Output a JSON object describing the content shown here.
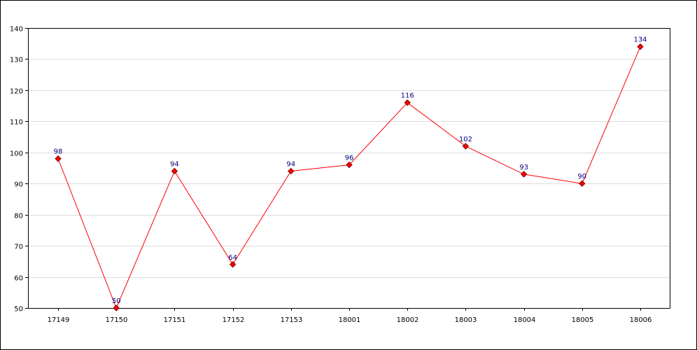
{
  "chart_data": {
    "type": "line",
    "title": "",
    "xlabel": "",
    "ylabel": "",
    "categories": [
      "17149",
      "17150",
      "17151",
      "17152",
      "17153",
      "18001",
      "18002",
      "18003",
      "18004",
      "18005",
      "18006"
    ],
    "series": [
      {
        "values": [
          98,
          50,
          94,
          64,
          94,
          96,
          116,
          102,
          93,
          90,
          134
        ],
        "color": "#ff0000"
      }
    ],
    "ylim": [
      50,
      140
    ],
    "yticks": [
      50,
      60,
      70,
      80,
      90,
      100,
      110,
      120,
      130,
      140
    ],
    "grid": true,
    "legend": "none",
    "marker": "diamond",
    "data_labels": true,
    "colors": {
      "line": "#ff0000",
      "marker_fill": "#ff0000",
      "marker_stroke": "#800000",
      "data_label": "#000080",
      "grid": "#dddddd",
      "axis": "#000000"
    }
  }
}
